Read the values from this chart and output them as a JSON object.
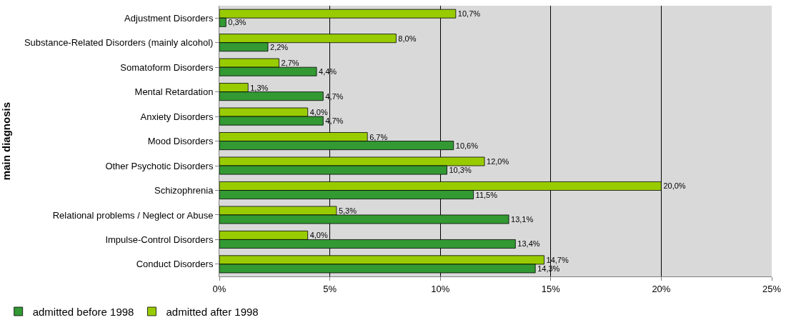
{
  "chart_data": {
    "type": "bar",
    "orientation": "horizontal",
    "ylabel": "main diagnosis",
    "categories": [
      "Adjustment Disorders",
      "Substance-Related Disorders (mainly alcohol)",
      "Somatoform Disorders",
      "Mental Retardation",
      "Anxiety Disorders",
      "Mood Disorders",
      "Other Psychotic Disorders",
      "Schizophrenia",
      "Relational problems / Neglect or Abuse",
      "Impulse-Control Disorders",
      "Conduct Disorders"
    ],
    "series": [
      {
        "name": "admitted before 1998",
        "color": "#339933",
        "values": [
          0.3,
          2.2,
          4.4,
          4.7,
          4.7,
          10.6,
          10.3,
          11.5,
          13.1,
          13.4,
          14.3
        ],
        "value_labels": [
          "0,3%",
          "2,2%",
          "4,4%",
          "4,7%",
          "4,7%",
          "10,6%",
          "10,3%",
          "11,5%",
          "13,1%",
          "13,4%",
          "14,3%"
        ]
      },
      {
        "name": "admitted after 1998",
        "color": "#99cc00",
        "values": [
          10.7,
          8.0,
          2.7,
          1.3,
          4.0,
          6.7,
          12.0,
          20.0,
          5.3,
          4.0,
          14.7
        ],
        "value_labels": [
          "10,7%",
          "8,0%",
          "2,7%",
          "1,3%",
          "4,0%",
          "6,7%",
          "12,0%",
          "20,0%",
          "5,3%",
          "4,0%",
          "14,7%"
        ]
      }
    ],
    "xlim": [
      0,
      25
    ],
    "xticks": [
      {
        "value": 0,
        "label": "0%"
      },
      {
        "value": 5,
        "label": "5%"
      },
      {
        "value": 10,
        "label": "10%"
      },
      {
        "value": 15,
        "label": "15%"
      },
      {
        "value": 20,
        "label": "20%"
      },
      {
        "value": 25,
        "label": "25%"
      }
    ],
    "grid": "x",
    "legend": "bottom left"
  }
}
